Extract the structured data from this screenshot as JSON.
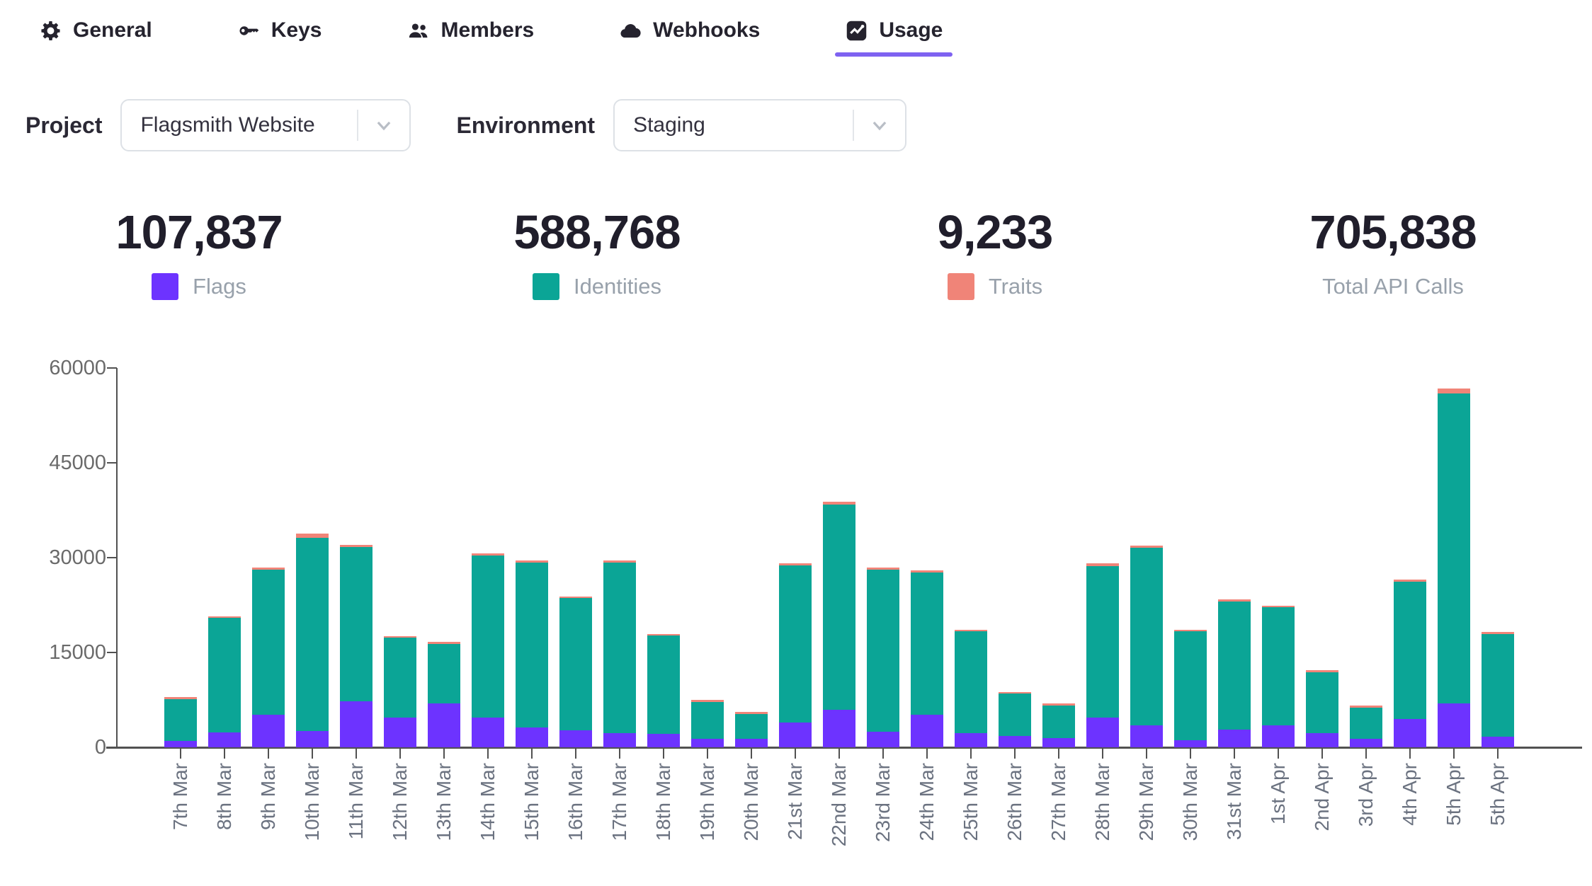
{
  "tabs": [
    {
      "label": "General",
      "icon": "gear-icon",
      "active": false
    },
    {
      "label": "Keys",
      "icon": "key-icon",
      "active": false
    },
    {
      "label": "Members",
      "icon": "members-icon",
      "active": false
    },
    {
      "label": "Webhooks",
      "icon": "webhook-cloud-icon",
      "active": false
    },
    {
      "label": "Usage",
      "icon": "usage-chart-icon",
      "active": true
    }
  ],
  "filters": {
    "project_label": "Project",
    "project_value": "Flagsmith Website",
    "environment_label": "Environment",
    "environment_value": "Staging"
  },
  "stats": [
    {
      "value": "107,837",
      "label": "Flags",
      "swatch": "#6d33ff"
    },
    {
      "value": "588,768",
      "label": "Identities",
      "swatch": "#0ba596"
    },
    {
      "value": "9,233",
      "label": "Traits",
      "swatch": "#f08478"
    },
    {
      "value": "705,838",
      "label": "Total API Calls",
      "swatch": null
    }
  ],
  "chart_data": {
    "type": "bar",
    "stacked": true,
    "title": "",
    "xlabel": "",
    "ylabel": "",
    "ylim": [
      0,
      60000
    ],
    "yticks": [
      0,
      15000,
      30000,
      45000,
      60000
    ],
    "grid": false,
    "legend_position": "top-stats-row",
    "categories": [
      "7th Mar",
      "8th Mar",
      "9th Mar",
      "10th Mar",
      "11th Mar",
      "12th Mar",
      "13th Mar",
      "14th Mar",
      "15th Mar",
      "16th Mar",
      "17th Mar",
      "18th Mar",
      "19th Mar",
      "20th Mar",
      "21st Mar",
      "22nd Mar",
      "23rd Mar",
      "24th Mar",
      "25th Mar",
      "26th Mar",
      "27th Mar",
      "28th Mar",
      "29th Mar",
      "30th Mar",
      "31st Mar",
      "1st Apr",
      "2nd Apr",
      "3rd Apr",
      "4th Apr",
      "5th Apr",
      "5th Apr"
    ],
    "series": [
      {
        "name": "Flags",
        "color": "#6d33ff",
        "values": [
          1000,
          2400,
          5200,
          2600,
          7300,
          4700,
          6900,
          4700,
          3100,
          2700,
          2300,
          2100,
          1300,
          1300,
          3900,
          5900,
          2500,
          5100,
          2300,
          1800,
          1500,
          4700,
          3500,
          1100,
          2800,
          3500,
          2200,
          1400,
          4500,
          7000,
          1700
        ]
      },
      {
        "name": "Identities",
        "color": "#0ba596",
        "values": [
          6650,
          18050,
          22900,
          30500,
          24400,
          12600,
          9500,
          25650,
          26100,
          20900,
          26950,
          15550,
          5900,
          4020,
          24900,
          32500,
          25600,
          22550,
          16050,
          6700,
          5120,
          24000,
          28050,
          17250,
          20300,
          18650,
          9700,
          4920,
          21700,
          49000,
          16250
        ]
      },
      {
        "name": "Traits",
        "color": "#f08478",
        "values": [
          150,
          250,
          300,
          700,
          300,
          100,
          100,
          350,
          400,
          300,
          250,
          150,
          100,
          80,
          300,
          400,
          300,
          350,
          150,
          100,
          80,
          400,
          350,
          150,
          200,
          150,
          100,
          80,
          300,
          800,
          150
        ]
      }
    ]
  }
}
